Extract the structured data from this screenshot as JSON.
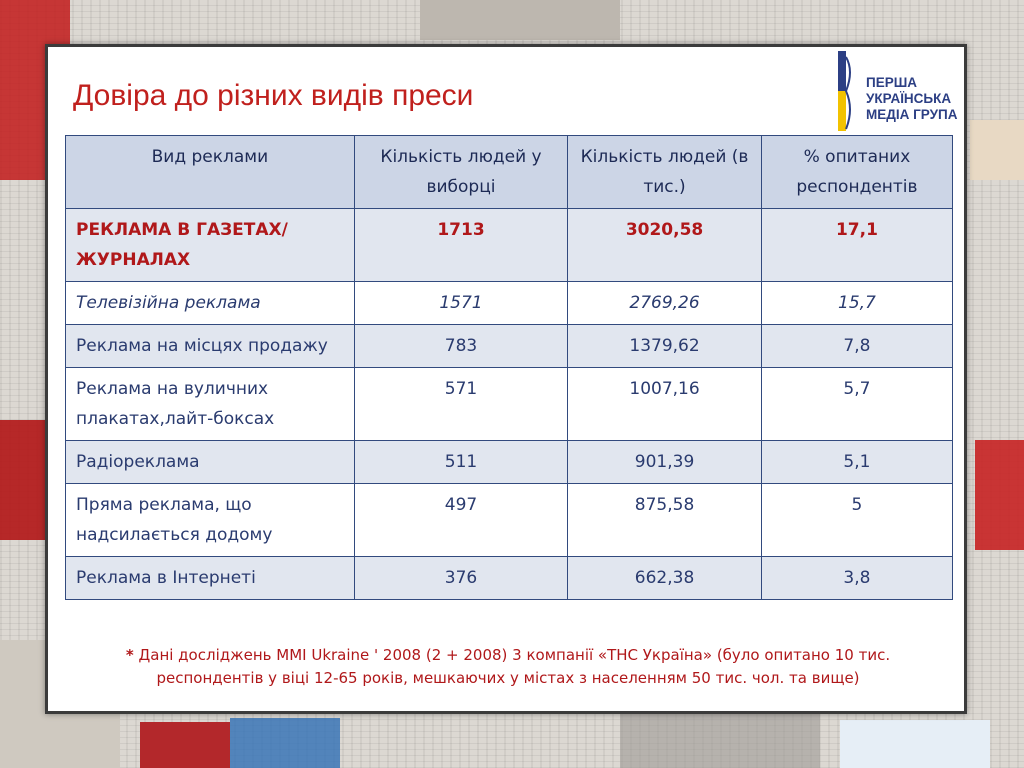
{
  "title": "Довіра до різних видів преси",
  "logo": {
    "line1": "ПЕРША",
    "line2": "УКРАЇНСЬКА",
    "line3": "МЕДІА ГРУПА"
  },
  "table": {
    "headers": [
      "Вид реклами",
      "Кількість людей у виборці",
      "Кількість людей (в тис.)",
      "% опитаних респондентів"
    ],
    "rows": [
      {
        "type": "РЕКЛАМА В ГАЗЕТАХ/ЖУРНАЛАХ",
        "count": "1713",
        "thousands": "3020,58",
        "percent": "17,1"
      },
      {
        "type": "Телевізійна реклама",
        "count": "1571",
        "thousands": "2769,26",
        "percent": "15,7"
      },
      {
        "type": "Реклама на місцях продажу",
        "count": "783",
        "thousands": "1379,62",
        "percent": "7,8"
      },
      {
        "type": "Реклама на вуличних плакатах,лайт-боксах",
        "count": "571",
        "thousands": "1007,16",
        "percent": "5,7"
      },
      {
        "type": "Радіореклама",
        "count": "511",
        "thousands": "901,39",
        "percent": "5,1"
      },
      {
        "type": "Пряма реклама, що надсилається додому",
        "count": "497",
        "thousands": "875,58",
        "percent": "5"
      },
      {
        "type": "Реклама в Інтернеті",
        "count": "376",
        "thousands": "662,38",
        "percent": "3,8"
      }
    ]
  },
  "footnote": {
    "star": "*",
    "text": "Дані досліджень MMI Ukraine ' 2008 (2 + 2008) 3 компанії «ТНС Україна» (було опитано 10 тис. респондентів у віці 12-65 років, мешкаючих у містах з населенням 50 тис. чол. та вище)"
  },
  "colors": {
    "title": "#c0201d",
    "table_text": "#2a3b6f",
    "header_bg": "#ccd5e6",
    "alt_row_bg": "#e1e6ef",
    "highlight_text": "#b0181a",
    "logo_blue": "#2c3f84",
    "logo_yellow": "#f2c200"
  }
}
